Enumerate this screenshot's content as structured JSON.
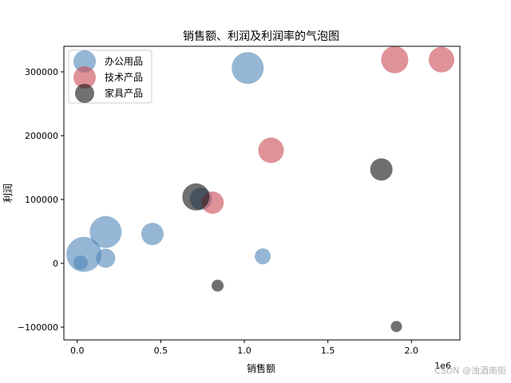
{
  "chart_data": {
    "type": "scatter",
    "title": "销售额、利润及利润率的气泡图",
    "xlabel": "销售额",
    "ylabel": "利润",
    "x_offset_label": "1e6",
    "xlim": [
      -80000,
      2290000
    ],
    "ylim": [
      -120000,
      340000
    ],
    "xticks": [
      0,
      500000,
      1000000,
      1500000,
      2000000
    ],
    "xtick_labels": [
      "0.0",
      "0.5",
      "1.0",
      "1.5",
      "2.0"
    ],
    "yticks": [
      -100000,
      0,
      100000,
      200000,
      300000
    ],
    "ytick_labels": [
      "−100000",
      "0",
      "100000",
      "200000",
      "300000"
    ],
    "grid": false,
    "legend_position": "top-left",
    "series": [
      {
        "name": "办公用品",
        "color": "#4f86b8",
        "points": [
          {
            "x": 1020000,
            "y": 306000,
            "size": 20
          },
          {
            "x": 170000,
            "y": 49000,
            "size": 20
          },
          {
            "x": 40000,
            "y": 14000,
            "size": 22
          },
          {
            "x": 450000,
            "y": 46000,
            "size": 14
          },
          {
            "x": 740000,
            "y": 101000,
            "size": 14
          },
          {
            "x": 170000,
            "y": 8000,
            "size": 12
          },
          {
            "x": 20000,
            "y": 1000,
            "size": 9
          },
          {
            "x": 1110000,
            "y": 11000,
            "size": 10
          }
        ]
      },
      {
        "name": "技术产品",
        "color": "#c94a53",
        "points": [
          {
            "x": 1900000,
            "y": 319000,
            "size": 17
          },
          {
            "x": 2180000,
            "y": 319000,
            "size": 16
          },
          {
            "x": 1160000,
            "y": 177000,
            "size": 16
          },
          {
            "x": 810000,
            "y": 95000,
            "size": 14
          }
        ]
      },
      {
        "name": "家具产品",
        "color": "#111111",
        "points": [
          {
            "x": 710000,
            "y": 104000,
            "size": 17
          },
          {
            "x": 1820000,
            "y": 147000,
            "size": 14
          },
          {
            "x": 840000,
            "y": -35000,
            "size": 7.5
          },
          {
            "x": 1910000,
            "y": -99000,
            "size": 7
          }
        ]
      }
    ]
  },
  "watermark": "CSDN @浊酒南街"
}
